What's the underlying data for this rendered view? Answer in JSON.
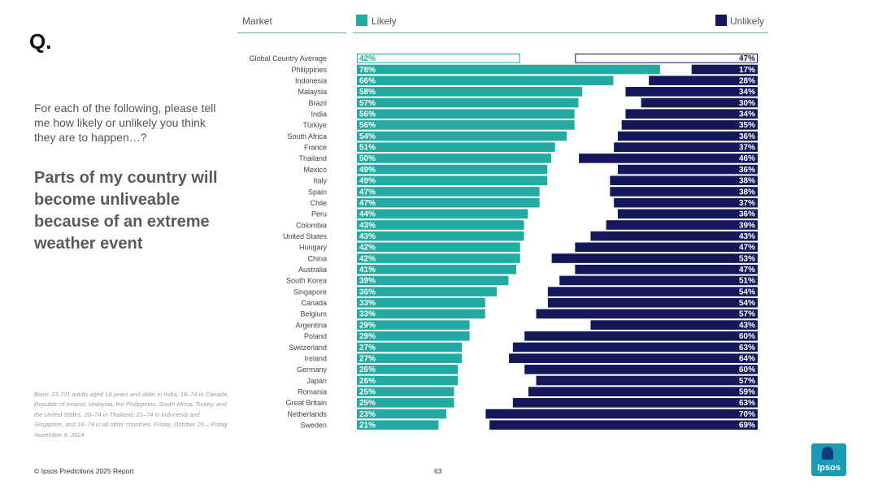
{
  "page": {
    "q_mark": "Q.",
    "question": "For each of the following, please tell me how likely or unlikely you think they are to happen…?",
    "statement": "Parts of my country will become unliveable because of an extreme weather event",
    "base_note": "Base: 23,721 adults aged 18 years and older in India, 18–74 in Canada, Republic of Ireland, Malaysia, the Philippines, South Africa, Turkey, and the United States, 20–74 in Thailand, 21–74 in Indonesia and Singapore, and 16–74 in all other countries. Friday, October 25 – Friday November 8, 2024",
    "footer": "© Ipsos Predictions 2025 Report",
    "page_number": "63",
    "logo_text": "Ipsos"
  },
  "colors": {
    "likely": "#22aba3",
    "unlikely": "#14175a",
    "average_outline": "#22aba3"
  },
  "chart_data": {
    "type": "bar",
    "header_market": "Market",
    "series": [
      {
        "name": "Likely",
        "values": [
          42,
          78,
          66,
          58,
          57,
          56,
          56,
          54,
          51,
          50,
          49,
          49,
          47,
          47,
          44,
          43,
          43,
          42,
          42,
          41,
          39,
          36,
          33,
          33,
          29,
          29,
          27,
          27,
          26,
          26,
          25,
          25,
          23,
          21
        ]
      },
      {
        "name": "Unlikely",
        "values": [
          47,
          17,
          28,
          34,
          30,
          34,
          35,
          36,
          37,
          46,
          36,
          38,
          38,
          37,
          36,
          39,
          43,
          47,
          53,
          47,
          51,
          54,
          54,
          57,
          43,
          60,
          63,
          64,
          60,
          57,
          59,
          63,
          70,
          69
        ]
      }
    ],
    "categories": [
      "Global Country Average",
      "Philippines",
      "Indonesia",
      "Malaysia",
      "Brazil",
      "India",
      "Türkiye",
      "South Africa",
      "France",
      "Thailand",
      "Mexico",
      "Italy",
      "Spain",
      "Chile",
      "Peru",
      "Colombia",
      "United States",
      "Hungary",
      "China",
      "Australia",
      "South Korea",
      "Singapore",
      "Canada",
      "Belgium",
      "Argentina",
      "Poland",
      "Switzerland",
      "Ireland",
      "Germany",
      "Japan",
      "Romania",
      "Great Britain",
      "Netherlands",
      "Sweden"
    ],
    "value_suffix": "%",
    "xlim": [
      0,
      100
    ]
  }
}
